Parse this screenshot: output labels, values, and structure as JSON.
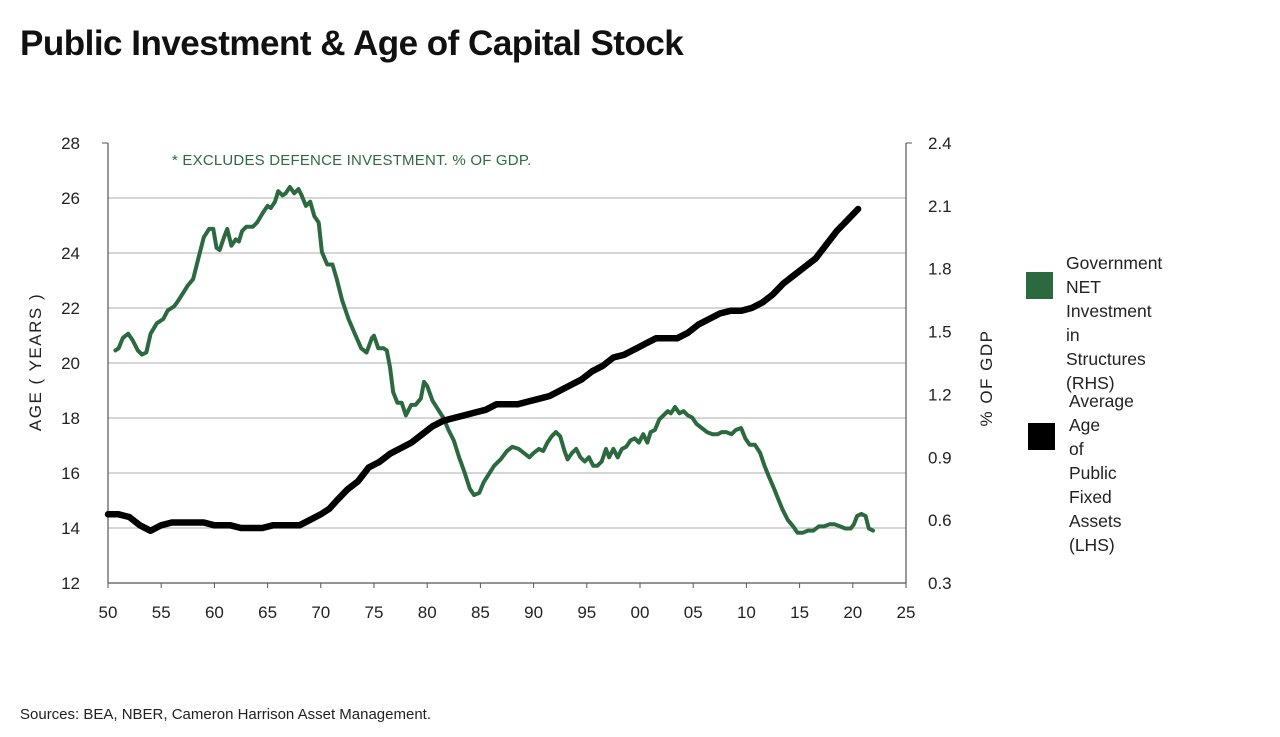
{
  "title": "Public Investment & Age of Capital Stock",
  "source": "Sources: BEA, NBER, Cameron Harrison Asset Management.",
  "colors": {
    "green": "#2b6a3e",
    "black": "#000000",
    "grid": "#c8c8c8"
  },
  "chart_data": {
    "type": "line",
    "annotation": "* EXCLUDES DEFENCE INVESTMENT.  % OF GDP.",
    "x_axis": {
      "ticks": [
        "50",
        "55",
        "60",
        "65",
        "70",
        "75",
        "80",
        "85",
        "90",
        "95",
        "00",
        "05",
        "10",
        "15",
        "20",
        "25"
      ],
      "range": [
        1950,
        2025
      ]
    },
    "y_left": {
      "label": "AGE  ( YEARS )",
      "ticks": [
        "12",
        "14",
        "16",
        "18",
        "20",
        "22",
        "24",
        "26",
        "28"
      ],
      "range": [
        12,
        28
      ]
    },
    "y_right": {
      "label": "% OF GDP",
      "ticks": [
        "0.3",
        "0.6",
        "0.9",
        "1.2",
        "1.5",
        "1.8",
        "2.1",
        "2.4"
      ],
      "range": [
        0.3,
        2.4
      ]
    },
    "grid": true,
    "series": [
      {
        "name": "Government NET Investment in Structures (RHS)",
        "axis": "right",
        "color": "#2b6a3e",
        "points": [
          [
            1950.7,
            1.41
          ],
          [
            1951,
            1.42
          ],
          [
            1951.4,
            1.47
          ],
          [
            1951.9,
            1.49
          ],
          [
            1952.3,
            1.46
          ],
          [
            1952.8,
            1.41
          ],
          [
            1953.2,
            1.39
          ],
          [
            1953.6,
            1.4
          ],
          [
            1954,
            1.49
          ],
          [
            1954.6,
            1.54
          ],
          [
            1955.2,
            1.56
          ],
          [
            1955.6,
            1.6
          ],
          [
            1956.2,
            1.62
          ],
          [
            1956.5,
            1.64
          ],
          [
            1957,
            1.68
          ],
          [
            1957.5,
            1.72
          ],
          [
            1958,
            1.75
          ],
          [
            1958.5,
            1.85
          ],
          [
            1959,
            1.95
          ],
          [
            1959.5,
            1.99
          ],
          [
            1959.9,
            1.99
          ],
          [
            1960.2,
            1.9
          ],
          [
            1960.5,
            1.89
          ],
          [
            1960.9,
            1.95
          ],
          [
            1961.2,
            1.99
          ],
          [
            1961.6,
            1.91
          ],
          [
            1962,
            1.94
          ],
          [
            1962.3,
            1.93
          ],
          [
            1962.6,
            1.98
          ],
          [
            1963,
            2.0
          ],
          [
            1963.6,
            2.0
          ],
          [
            1964,
            2.02
          ],
          [
            1964.6,
            2.07
          ],
          [
            1965,
            2.1
          ],
          [
            1965.3,
            2.09
          ],
          [
            1965.7,
            2.12
          ],
          [
            1966,
            2.17
          ],
          [
            1966.4,
            2.15
          ],
          [
            1966.7,
            2.16
          ],
          [
            1967.1,
            2.19
          ],
          [
            1967.5,
            2.16
          ],
          [
            1967.9,
            2.18
          ],
          [
            1968.2,
            2.15
          ],
          [
            1968.6,
            2.1
          ],
          [
            1969,
            2.12
          ],
          [
            1969.4,
            2.05
          ],
          [
            1969.8,
            2.02
          ],
          [
            1970.1,
            1.88
          ],
          [
            1970.6,
            1.82
          ],
          [
            1971.1,
            1.82
          ],
          [
            1971.5,
            1.75
          ],
          [
            1972,
            1.65
          ],
          [
            1972.6,
            1.56
          ],
          [
            1973.2,
            1.49
          ],
          [
            1973.8,
            1.42
          ],
          [
            1974.3,
            1.4
          ],
          [
            1974.8,
            1.47
          ],
          [
            1975,
            1.48
          ],
          [
            1975.4,
            1.42
          ],
          [
            1975.9,
            1.42
          ],
          [
            1976.2,
            1.41
          ],
          [
            1976.5,
            1.33
          ],
          [
            1976.8,
            1.21
          ],
          [
            1977.2,
            1.16
          ],
          [
            1977.6,
            1.16
          ],
          [
            1978,
            1.1
          ],
          [
            1978.5,
            1.15
          ],
          [
            1978.9,
            1.15
          ],
          [
            1979.4,
            1.18
          ],
          [
            1979.7,
            1.26
          ],
          [
            1980,
            1.24
          ],
          [
            1980.5,
            1.17
          ],
          [
            1981,
            1.13
          ],
          [
            1981.5,
            1.09
          ],
          [
            1982,
            1.03
          ],
          [
            1982.5,
            0.98
          ],
          [
            1983,
            0.9
          ],
          [
            1983.5,
            0.83
          ],
          [
            1984,
            0.75
          ],
          [
            1984.4,
            0.72
          ],
          [
            1984.9,
            0.73
          ],
          [
            1985.3,
            0.78
          ],
          [
            1985.8,
            0.82
          ],
          [
            1986.3,
            0.86
          ],
          [
            1986.9,
            0.89
          ],
          [
            1987.5,
            0.93
          ],
          [
            1988,
            0.95
          ],
          [
            1988.6,
            0.94
          ],
          [
            1989.1,
            0.92
          ],
          [
            1989.6,
            0.9
          ],
          [
            1990,
            0.92
          ],
          [
            1990.5,
            0.94
          ],
          [
            1990.9,
            0.93
          ],
          [
            1991.3,
            0.97
          ],
          [
            1991.7,
            1.0
          ],
          [
            1992.1,
            1.02
          ],
          [
            1992.5,
            1.0
          ],
          [
            1992.9,
            0.93
          ],
          [
            1993.2,
            0.89
          ],
          [
            1993.6,
            0.92
          ],
          [
            1994,
            0.94
          ],
          [
            1994.4,
            0.9
          ],
          [
            1994.8,
            0.88
          ],
          [
            1995.2,
            0.9
          ],
          [
            1995.6,
            0.86
          ],
          [
            1996,
            0.86
          ],
          [
            1996.4,
            0.88
          ],
          [
            1996.8,
            0.94
          ],
          [
            1997.1,
            0.9
          ],
          [
            1997.5,
            0.94
          ],
          [
            1997.9,
            0.9
          ],
          [
            1998.3,
            0.94
          ],
          [
            1998.7,
            0.95
          ],
          [
            1999.1,
            0.98
          ],
          [
            1999.5,
            0.99
          ],
          [
            1999.9,
            0.97
          ],
          [
            2000.3,
            1.01
          ],
          [
            2000.7,
            0.97
          ],
          [
            2001,
            1.02
          ],
          [
            2001.4,
            1.03
          ],
          [
            2001.8,
            1.08
          ],
          [
            2002.2,
            1.1
          ],
          [
            2002.6,
            1.12
          ],
          [
            2002.9,
            1.11
          ],
          [
            2003.3,
            1.14
          ],
          [
            2003.7,
            1.11
          ],
          [
            2004.1,
            1.12
          ],
          [
            2004.5,
            1.1
          ],
          [
            2004.9,
            1.09
          ],
          [
            2005.3,
            1.06
          ],
          [
            2005.8,
            1.04
          ],
          [
            2006.3,
            1.02
          ],
          [
            2006.8,
            1.01
          ],
          [
            2007.3,
            1.01
          ],
          [
            2007.7,
            1.02
          ],
          [
            2008.1,
            1.02
          ],
          [
            2008.6,
            1.01
          ],
          [
            2009,
            1.03
          ],
          [
            2009.5,
            1.04
          ],
          [
            2009.9,
            0.99
          ],
          [
            2010.3,
            0.96
          ],
          [
            2010.8,
            0.96
          ],
          [
            2011.3,
            0.92
          ],
          [
            2011.7,
            0.86
          ],
          [
            2012.1,
            0.81
          ],
          [
            2012.6,
            0.75
          ],
          [
            2013,
            0.7
          ],
          [
            2013.4,
            0.65
          ],
          [
            2013.9,
            0.6
          ],
          [
            2014.4,
            0.57
          ],
          [
            2014.8,
            0.54
          ],
          [
            2015.3,
            0.54
          ],
          [
            2015.8,
            0.55
          ],
          [
            2016.3,
            0.55
          ],
          [
            2016.8,
            0.57
          ],
          [
            2017.3,
            0.57
          ],
          [
            2017.8,
            0.58
          ],
          [
            2018.3,
            0.58
          ],
          [
            2018.8,
            0.57
          ],
          [
            2019.3,
            0.56
          ],
          [
            2019.8,
            0.56
          ],
          [
            2020.1,
            0.58
          ],
          [
            2020.4,
            0.62
          ],
          [
            2020.8,
            0.63
          ],
          [
            2021.2,
            0.62
          ],
          [
            2021.5,
            0.56
          ],
          [
            2021.9,
            0.55
          ]
        ]
      },
      {
        "name": "Average Age of Public Fixed Assets (LHS)",
        "axis": "left",
        "color": "#000000",
        "points": [
          [
            1950,
            14.5
          ],
          [
            1951,
            14.5
          ],
          [
            1952,
            14.4
          ],
          [
            1953,
            14.1
          ],
          [
            1954,
            13.9
          ],
          [
            1955,
            14.1
          ],
          [
            1956,
            14.2
          ],
          [
            1958,
            14.2
          ],
          [
            1959,
            14.2
          ],
          [
            1960,
            14.1
          ],
          [
            1961.5,
            14.1
          ],
          [
            1962.5,
            14.0
          ],
          [
            1964.5,
            14.0
          ],
          [
            1965.5,
            14.1
          ],
          [
            1967,
            14.1
          ],
          [
            1968,
            14.1
          ],
          [
            1969,
            14.3
          ],
          [
            1970,
            14.5
          ],
          [
            1970.8,
            14.7
          ],
          [
            1971.5,
            15.0
          ],
          [
            1972.5,
            15.4
          ],
          [
            1973.5,
            15.7
          ],
          [
            1974.5,
            16.2
          ],
          [
            1975.5,
            16.4
          ],
          [
            1976.5,
            16.7
          ],
          [
            1977.5,
            16.9
          ],
          [
            1978.5,
            17.1
          ],
          [
            1979.5,
            17.4
          ],
          [
            1980.5,
            17.7
          ],
          [
            1981.5,
            17.9
          ],
          [
            1982.5,
            18.0
          ],
          [
            1983.5,
            18.1
          ],
          [
            1984.5,
            18.2
          ],
          [
            1985.5,
            18.3
          ],
          [
            1986.5,
            18.5
          ],
          [
            1987.5,
            18.5
          ],
          [
            1988.5,
            18.5
          ],
          [
            1989.5,
            18.6
          ],
          [
            1990.5,
            18.7
          ],
          [
            1991.5,
            18.8
          ],
          [
            1992.5,
            19.0
          ],
          [
            1993.5,
            19.2
          ],
          [
            1994.5,
            19.4
          ],
          [
            1995.5,
            19.7
          ],
          [
            1996.5,
            19.9
          ],
          [
            1997.5,
            20.2
          ],
          [
            1998.5,
            20.3
          ],
          [
            1999.5,
            20.5
          ],
          [
            2000.5,
            20.7
          ],
          [
            2001.5,
            20.9
          ],
          [
            2002.5,
            20.9
          ],
          [
            2003.5,
            20.9
          ],
          [
            2004.5,
            21.1
          ],
          [
            2005.5,
            21.4
          ],
          [
            2006.5,
            21.6
          ],
          [
            2007.5,
            21.8
          ],
          [
            2008.5,
            21.9
          ],
          [
            2009.5,
            21.9
          ],
          [
            2010.5,
            22.0
          ],
          [
            2011.5,
            22.2
          ],
          [
            2012.5,
            22.5
          ],
          [
            2013.5,
            22.9
          ],
          [
            2014.5,
            23.2
          ],
          [
            2015.5,
            23.5
          ],
          [
            2016.5,
            23.8
          ],
          [
            2017.5,
            24.3
          ],
          [
            2018.5,
            24.8
          ],
          [
            2019.5,
            25.2
          ],
          [
            2020.5,
            25.6
          ]
        ]
      }
    ],
    "legend": {
      "placement": "right",
      "items": [
        {
          "label": "Government NET\nInvestment in\nStructures (RHS)",
          "color": "#2b6a3e"
        },
        {
          "label": "Average Age\nof Public\nFixed Assets\n(LHS)",
          "color": "#000000"
        }
      ]
    }
  }
}
